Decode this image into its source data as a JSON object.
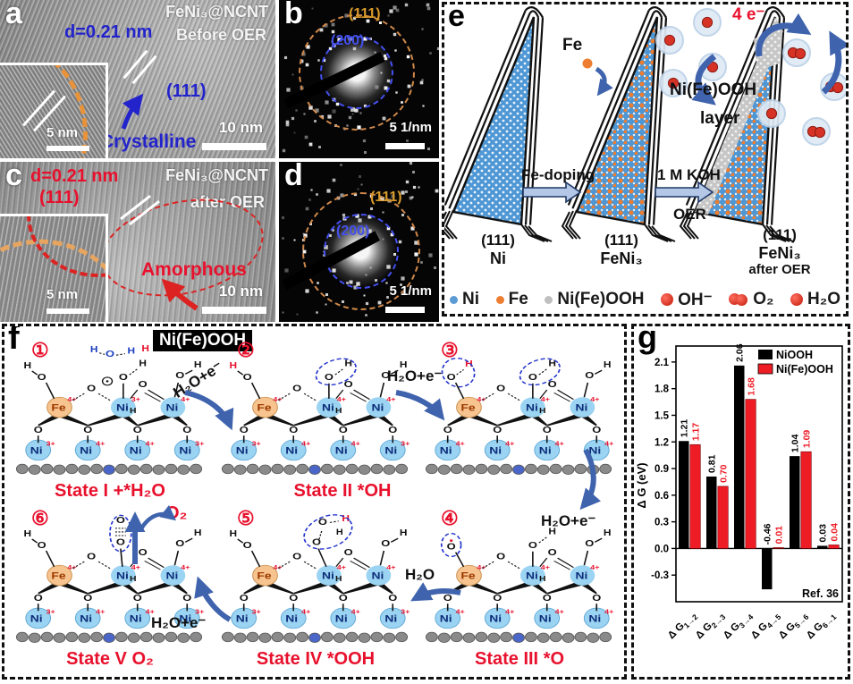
{
  "figure": {
    "panel_a": {
      "tag": "a",
      "sample": "FeNi₃@NCNT",
      "condition": "Before OER",
      "dspacing": "d=0.21 nm",
      "plane": "(111)",
      "note": "Crystalline",
      "scalebar": "10 nm",
      "inset_scalebar": "5 nm"
    },
    "panel_b": {
      "tag": "b",
      "ring_outer": "(111)",
      "ring_inner": "(200)",
      "scalebar": "5 1/nm"
    },
    "panel_c": {
      "tag": "c",
      "sample": "FeNi₃@NCNT",
      "condition": "after OER",
      "dspacing": "d=0.21 nm",
      "plane": "(111)",
      "note": "Amorphous",
      "scalebar": "10 nm",
      "inset_scalebar": "5 nm"
    },
    "panel_d": {
      "tag": "d",
      "ring_outer": "(111)",
      "ring_inner": "(200)",
      "scalebar": "5 1/nm"
    },
    "panel_e": {
      "tag": "e",
      "fe_atom": "Fe",
      "step1": "Fe-doping",
      "step2_line1": "1 M KOH",
      "step2_line2": "OER",
      "electrons": "4 e⁻",
      "layer_line1": "Ni(Fe)OOH",
      "layer_line2": "layer",
      "cones": [
        {
          "plane": "(111)",
          "name": "Ni",
          "sub": ""
        },
        {
          "plane": "(111)",
          "name": "FeNi₃",
          "sub": ""
        },
        {
          "plane": "(111)",
          "name": "FeNi₃",
          "sub": "after OER"
        }
      ],
      "legend": [
        {
          "marker": "dot-blue",
          "label": "Ni"
        },
        {
          "marker": "dot-orange",
          "label": "Fe"
        },
        {
          "marker": "dot-gray",
          "label": "Ni(Fe)OOH"
        },
        {
          "marker": "ball-oh",
          "label": "OH⁻"
        },
        {
          "marker": "ball-o2",
          "label": "O₂"
        },
        {
          "marker": "ball-h2o",
          "label": "H₂O"
        }
      ]
    },
    "panel_f": {
      "tag": "f",
      "title": "Ni(Fe)OOH",
      "atoms": {
        "fe": "Fe",
        "ni": "Ni",
        "o": "O",
        "h": "H"
      },
      "states": [
        {
          "num": "①",
          "label": "State I +*H₂O",
          "variant": "water",
          "left_h": "black",
          "metal_charges": [
            "4+",
            "3+",
            "4+"
          ],
          "bottom_charges": [
            "3+",
            "4+",
            "4+",
            "3+"
          ]
        },
        {
          "num": "②",
          "label": "State II *OH",
          "variant": "oh",
          "left_h": "red",
          "metal_charges": [
            "4+",
            "4+",
            "4+"
          ],
          "bottom_charges": [
            "3+",
            "4+",
            "4+",
            "3+"
          ]
        },
        {
          "num": "③",
          "label": "",
          "variant": "two_oh",
          "left_h": "red",
          "metal_charges": [
            "4+",
            "4+",
            "4+"
          ],
          "bottom_charges": [
            "4+",
            "4+",
            "4+",
            "4+"
          ]
        },
        {
          "num": "④",
          "label": "State III *O",
          "variant": "o_rad",
          "left_h": "black",
          "metal_charges": [
            "4+",
            "4+",
            "4+"
          ],
          "bottom_charges": [
            "4+",
            "4+",
            "4+",
            "4+"
          ]
        },
        {
          "num": "⑤",
          "label": "State IV *OOH",
          "variant": "ooh",
          "left_h": "black",
          "metal_charges": [
            "4+",
            "4+",
            "4+"
          ],
          "bottom_charges": [
            "3+",
            "4+",
            "4+",
            "3+"
          ]
        },
        {
          "num": "⑥",
          "label": "State V O₂",
          "variant": "o2",
          "left_h": "black",
          "metal_charges": [
            "4+",
            "4+",
            "4+"
          ],
          "bottom_charges": [
            "3+",
            "4+",
            "4+",
            "3+"
          ]
        }
      ],
      "transitions": [
        {
          "id": "t12",
          "text": "H₂O+e⁻"
        },
        {
          "id": "t23",
          "text": "H₂O+e⁻"
        },
        {
          "id": "t34",
          "text": "H₂O+e⁻"
        },
        {
          "id": "t45",
          "text": "H₂O"
        },
        {
          "id": "t56",
          "text": "H₂O+e⁻"
        },
        {
          "id": "t61",
          "text": "O₂"
        }
      ]
    },
    "panel_g": {
      "tag": "g",
      "ref": "Ref. 36"
    }
  },
  "chart_data": {
    "type": "bar",
    "title": "",
    "ylabel": "Δ G (eV)",
    "categories": [
      {
        "main": "Δ G",
        "sub": "1→2"
      },
      {
        "main": "Δ G",
        "sub": "2→3"
      },
      {
        "main": "Δ G",
        "sub": "3→4"
      },
      {
        "main": "Δ G",
        "sub": "4→5"
      },
      {
        "main": "Δ G",
        "sub": "5→6"
      },
      {
        "main": "Δ G",
        "sub": "6→1"
      }
    ],
    "series": [
      {
        "name": "NiOOH",
        "color": "#000000",
        "values": [
          1.21,
          0.81,
          2.06,
          -0.46,
          1.04,
          0.03
        ]
      },
      {
        "name": "Ni(Fe)OOH",
        "color": "#ee1c25",
        "values": [
          1.17,
          0.7,
          1.68,
          0.01,
          1.09,
          0.04
        ]
      }
    ],
    "ylim": [
      -0.6,
      2.28
    ],
    "yticks": [
      -0.3,
      0.0,
      0.3,
      0.6,
      0.9,
      1.2,
      1.5,
      1.8,
      2.1
    ],
    "legend_position": "top-right",
    "annotation": "Ref. 36",
    "grid": false
  },
  "colors": {
    "accent_blue": "#2323cc",
    "accent_red": "#e8112d",
    "arrow_blue": "#3f63ad",
    "fe_orange": "#ed7d31",
    "ni_blue": "#5b9bd5",
    "oxide_gray": "#bfbfbf",
    "ring_outer": "#d0884a",
    "ring_inner": "#4450ee"
  }
}
